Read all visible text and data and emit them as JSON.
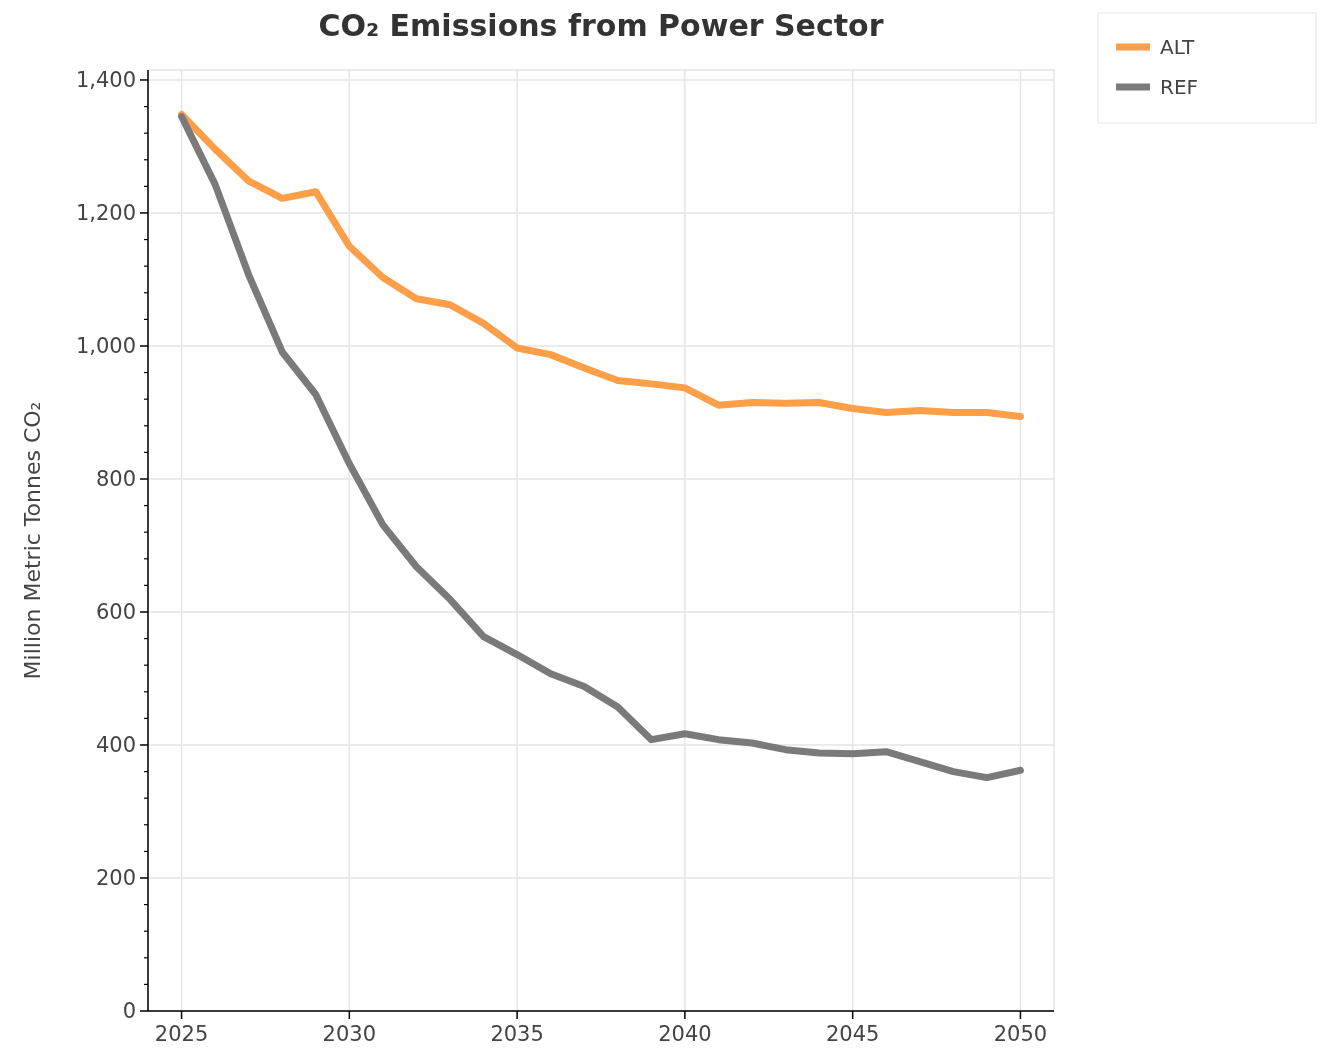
{
  "chart_data": {
    "type": "line",
    "title": "CO₂ Emissions from Power Sector",
    "ylabel": "Million Metric Tonnes CO₂",
    "x": [
      2025,
      2026,
      2027,
      2028,
      2029,
      2030,
      2031,
      2032,
      2033,
      2034,
      2035,
      2036,
      2037,
      2038,
      2039,
      2040,
      2041,
      2042,
      2043,
      2044,
      2045,
      2046,
      2047,
      2048,
      2049,
      2050
    ],
    "series": [
      {
        "name": "ALT",
        "color": "#fd9e48",
        "values": [
          1348,
          1296,
          1248,
          1222,
          1232,
          1150,
          1103,
          1071,
          1062,
          1034,
          997,
          987,
          967,
          948,
          943,
          937,
          911,
          915,
          914,
          915,
          906,
          900,
          903,
          900,
          900,
          894
        ]
      },
      {
        "name": "REF",
        "color": "#7a7a7a",
        "values": [
          1345,
          1243,
          1107,
          991,
          927,
          823,
          731,
          668,
          619,
          563,
          536,
          507,
          488,
          457,
          408,
          417,
          408,
          403,
          393,
          388,
          387,
          390,
          375,
          360,
          351,
          362
        ]
      }
    ],
    "xlim": [
      2024,
      2051
    ],
    "xticks": [
      2025,
      2030,
      2035,
      2040,
      2045,
      2050
    ],
    "ylim": [
      0,
      1415
    ],
    "yticks": [
      {
        "value": 0,
        "label": "0"
      },
      {
        "value": 200,
        "label": "200"
      },
      {
        "value": 400,
        "label": "400"
      },
      {
        "value": 600,
        "label": "600"
      },
      {
        "value": 800,
        "label": "800"
      },
      {
        "value": 1000,
        "label": "1,000"
      },
      {
        "value": 1200,
        "label": "1,200"
      },
      {
        "value": 1400,
        "label": "1,400"
      }
    ],
    "grid": true,
    "legend": "top right",
    "marker": "none",
    "line_style": "solid"
  }
}
